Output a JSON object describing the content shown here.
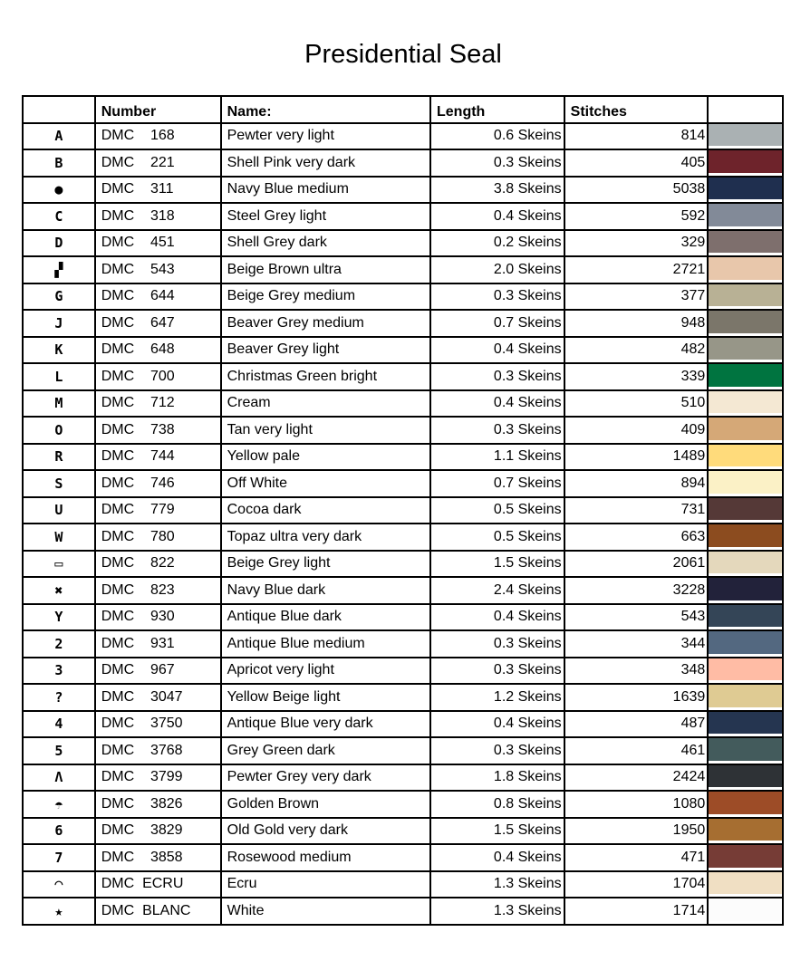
{
  "title": "Presidential Seal",
  "headers": {
    "symbol": "",
    "number": "Number",
    "name": "Name:",
    "length": "Length",
    "stitches": "Stitches",
    "color": ""
  },
  "rows": [
    {
      "symbol": "A",
      "number": "DMC    168",
      "name": "Pewter very light",
      "length": "0.6 Skeins",
      "stitches": "814",
      "color": "#aab1b3"
    },
    {
      "symbol": "B",
      "number": "DMC    221",
      "name": "Shell Pink very dark",
      "length": "0.3 Skeins",
      "stitches": "405",
      "color": "#6e232b"
    },
    {
      "symbol": "●",
      "number": "DMC    311",
      "name": "Navy Blue medium",
      "length": "3.8 Skeins",
      "stitches": "5038",
      "color": "#1f2f4f"
    },
    {
      "symbol": "C",
      "number": "DMC    318",
      "name": "Steel Grey light",
      "length": "0.4 Skeins",
      "stitches": "592",
      "color": "#828a98"
    },
    {
      "symbol": "D",
      "number": "DMC    451",
      "name": "Shell Grey dark",
      "length": "0.2 Skeins",
      "stitches": "329",
      "color": "#7e6f6d"
    },
    {
      "symbol": "▞",
      "number": "DMC    543",
      "name": "Beige Brown ultra",
      "length": "2.0 Skeins",
      "stitches": "2721",
      "color": "#e8c7ab"
    },
    {
      "symbol": "G",
      "number": "DMC    644",
      "name": "Beige Grey medium",
      "length": "0.3 Skeins",
      "stitches": "377",
      "color": "#b8b195"
    },
    {
      "symbol": "J",
      "number": "DMC    647",
      "name": "Beaver Grey medium",
      "length": "0.7 Skeins",
      "stitches": "948",
      "color": "#7b766a"
    },
    {
      "symbol": "K",
      "number": "DMC    648",
      "name": "Beaver Grey light",
      "length": "0.4 Skeins",
      "stitches": "482",
      "color": "#979688"
    },
    {
      "symbol": "L",
      "number": "DMC    700",
      "name": "Christmas Green bright",
      "length": "0.3 Skeins",
      "stitches": "339",
      "color": "#007440"
    },
    {
      "symbol": "M",
      "number": "DMC    712",
      "name": "Cream",
      "length": "0.4 Skeins",
      "stitches": "510",
      "color": "#f4e8d3"
    },
    {
      "symbol": "O",
      "number": "DMC    738",
      "name": "Tan very light",
      "length": "0.3 Skeins",
      "stitches": "409",
      "color": "#d5a877"
    },
    {
      "symbol": "R",
      "number": "DMC    744",
      "name": "Yellow pale",
      "length": "1.1 Skeins",
      "stitches": "1489",
      "color": "#ffdb7b"
    },
    {
      "symbol": "S",
      "number": "DMC    746",
      "name": "Off White",
      "length": "0.7 Skeins",
      "stitches": "894",
      "color": "#fbf1c6"
    },
    {
      "symbol": "U",
      "number": "DMC    779",
      "name": "Cocoa dark",
      "length": "0.5 Skeins",
      "stitches": "731",
      "color": "#553937"
    },
    {
      "symbol": "W",
      "number": "DMC    780",
      "name": "Topaz ultra very dark",
      "length": "0.5 Skeins",
      "stitches": "663",
      "color": "#8c4c1f"
    },
    {
      "symbol": "▭",
      "number": "DMC    822",
      "name": "Beige Grey light",
      "length": "1.5 Skeins",
      "stitches": "2061",
      "color": "#e4d8bc"
    },
    {
      "symbol": "✖",
      "number": "DMC    823",
      "name": "Navy Blue dark",
      "length": "2.4 Skeins",
      "stitches": "3228",
      "color": "#22223a"
    },
    {
      "symbol": "Y",
      "number": "DMC    930",
      "name": "Antique Blue dark",
      "length": "0.4 Skeins",
      "stitches": "543",
      "color": "#344557"
    },
    {
      "symbol": "2",
      "number": "DMC    931",
      "name": "Antique Blue medium",
      "length": "0.3 Skeins",
      "stitches": "344",
      "color": "#536880"
    },
    {
      "symbol": "3",
      "number": "DMC    967",
      "name": "Apricot very light",
      "length": "0.3 Skeins",
      "stitches": "348",
      "color": "#ffbca5"
    },
    {
      "symbol": "?",
      "number": "DMC    3047",
      "name": "Yellow Beige light",
      "length": "1.2 Skeins",
      "stitches": "1639",
      "color": "#dfcb93"
    },
    {
      "symbol": "4",
      "number": "DMC    3750",
      "name": "Antique Blue very dark",
      "length": "0.4 Skeins",
      "stitches": "487",
      "color": "#253550"
    },
    {
      "symbol": "5",
      "number": "DMC    3768",
      "name": "Grey Green dark",
      "length": "0.3 Skeins",
      "stitches": "461",
      "color": "#435b5c"
    },
    {
      "symbol": "Λ",
      "number": "DMC    3799",
      "name": "Pewter Grey very dark",
      "length": "1.8 Skeins",
      "stitches": "2424",
      "color": "#2e3236"
    },
    {
      "symbol": "☂",
      "number": "DMC    3826",
      "name": "Golden Brown",
      "length": "0.8 Skeins",
      "stitches": "1080",
      "color": "#9d4c27"
    },
    {
      "symbol": "6",
      "number": "DMC    3829",
      "name": "Old Gold very dark",
      "length": "1.5 Skeins",
      "stitches": "1950",
      "color": "#a66e31"
    },
    {
      "symbol": "7",
      "number": "DMC    3858",
      "name": "Rosewood medium",
      "length": "0.4 Skeins",
      "stitches": "471",
      "color": "#763c36"
    },
    {
      "symbol": "◠",
      "number": "DMC  ECRU",
      "name": "Ecru",
      "length": "1.3 Skeins",
      "stitches": "1704",
      "color": "#f0dfc3"
    },
    {
      "symbol": "★",
      "number": "DMC  BLANC",
      "name": "White",
      "length": "1.3 Skeins",
      "stitches": "1714",
      "color": "#fcfcfc"
    }
  ]
}
